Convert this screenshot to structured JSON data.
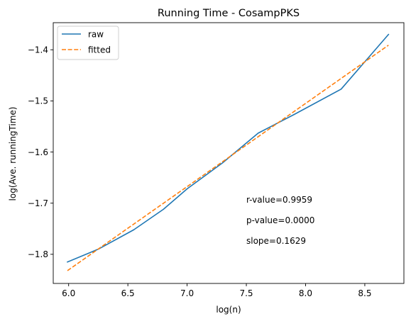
{
  "chart_data": {
    "type": "line",
    "title": "Running Time - CosampPKS",
    "xlabel": "log(n)",
    "ylabel": "log(Ave. runningTime)",
    "xlim": [
      5.87,
      8.83
    ],
    "ylim": [
      -1.857,
      -1.347
    ],
    "x_ticks": [
      6.0,
      6.5,
      7.0,
      7.5,
      8.0,
      8.5
    ],
    "x_tick_labels": [
      "6.0",
      "6.5",
      "7.0",
      "7.5",
      "8.0",
      "8.5"
    ],
    "y_ticks": [
      -1.8,
      -1.7,
      -1.6,
      -1.5,
      -1.4
    ],
    "y_tick_labels": [
      "−1.8",
      "−1.7",
      "−1.6",
      "−1.5",
      "−1.4"
    ],
    "legend_position": "upper-left",
    "grid": false,
    "series": [
      {
        "name": "raw",
        "style": "solid",
        "color": "#1f77b4",
        "x": [
          5.99,
          6.25,
          6.55,
          6.8,
          7.0,
          7.3,
          7.6,
          7.9,
          8.3,
          8.7
        ],
        "y": [
          -1.815,
          -1.79,
          -1.752,
          -1.712,
          -1.672,
          -1.621,
          -1.563,
          -1.527,
          -1.477,
          -1.37
        ]
      },
      {
        "name": "fitted",
        "style": "dashed",
        "color": "#ff7f0e",
        "x": [
          5.99,
          8.7
        ],
        "y": [
          -1.832,
          -1.391
        ]
      }
    ],
    "annotations": [
      {
        "text": "r-value=0.9959"
      },
      {
        "text": "p-value=0.0000"
      },
      {
        "text": "slope=0.1629"
      }
    ]
  }
}
